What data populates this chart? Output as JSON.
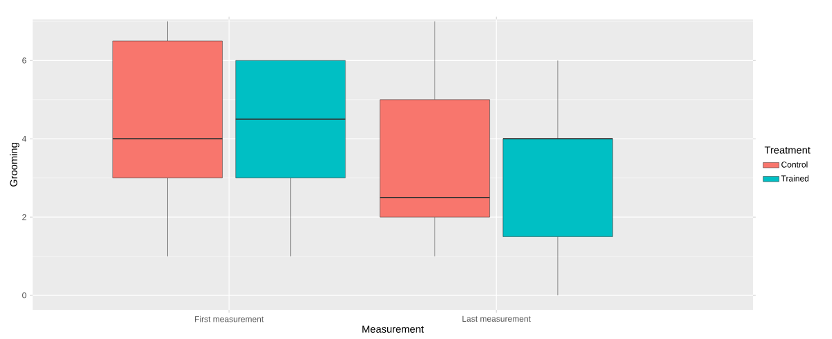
{
  "chart_data": {
    "type": "box",
    "xlabel": "Measurement",
    "ylabel": "Grooming",
    "legend_title": "Treatment",
    "legend": "right",
    "grid": true,
    "categories": [
      "First measurement",
      "Last measurement"
    ],
    "ylim": [
      -0.37,
      7.05
    ],
    "yticks": [
      0,
      2,
      4,
      6
    ],
    "series": [
      {
        "name": "Control",
        "color": "#f8766d",
        "boxes": [
          {
            "low": 1,
            "q1": 3,
            "median": 4,
            "q3": 6.5,
            "high": 7
          },
          {
            "low": 1,
            "q1": 2,
            "median": 2.5,
            "q3": 5,
            "high": 7
          }
        ]
      },
      {
        "name": "Trained",
        "color": "#00bfc4",
        "boxes": [
          {
            "low": 1,
            "q1": 3,
            "median": 4.5,
            "q3": 6,
            "high": 6
          },
          {
            "low": 0,
            "q1": 1.5,
            "median": 4,
            "q3": 4,
            "high": 6
          }
        ]
      }
    ]
  }
}
